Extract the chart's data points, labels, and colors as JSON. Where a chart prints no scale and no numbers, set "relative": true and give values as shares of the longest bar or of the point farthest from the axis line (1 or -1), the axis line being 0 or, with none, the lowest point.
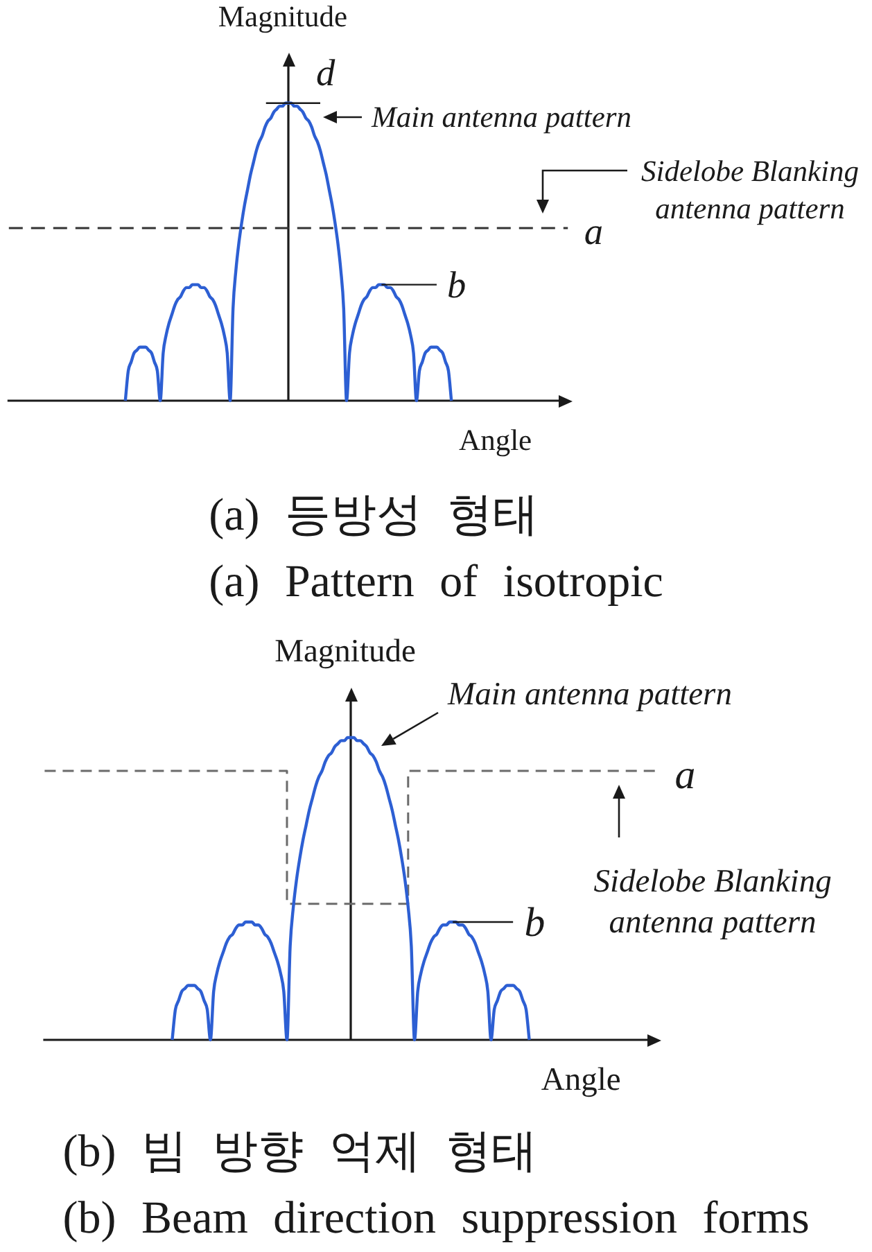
{
  "chart_data": [
    {
      "type": "line",
      "title": "(a) 등방성 형태",
      "subtitle": "(a) Pattern of isotropic",
      "xlabel": "Angle",
      "ylabel": "Magnitude",
      "relative": true,
      "marker": "none",
      "categories": [
        null,
        null,
        null,
        null,
        null,
        null,
        null,
        null,
        null,
        null,
        null,
        null,
        null,
        null,
        null,
        null,
        null,
        null,
        null,
        null,
        null,
        null,
        null,
        null,
        null,
        null,
        null,
        null,
        null,
        null,
        null,
        null,
        null,
        null,
        null,
        null,
        null,
        null,
        null,
        null,
        null,
        null,
        null,
        null,
        null,
        null,
        null,
        null,
        null,
        null,
        null,
        null,
        null,
        null,
        null,
        null,
        null,
        null,
        null,
        null,
        null,
        null,
        null,
        null,
        null,
        null,
        null,
        null,
        null,
        null,
        null,
        null,
        null,
        null,
        null,
        null,
        null,
        null,
        null,
        null,
        null,
        null,
        null,
        null,
        null,
        null,
        null,
        null,
        null,
        null,
        null,
        null,
        null,
        null,
        null,
        null,
        null,
        null,
        null,
        null,
        null,
        null,
        null,
        null,
        null,
        null,
        null,
        null,
        null,
        null,
        null,
        null,
        null,
        null,
        null,
        null,
        null,
        null,
        null,
        null,
        null,
        null,
        null,
        null,
        null,
        null,
        null,
        null,
        null,
        null,
        null,
        null,
        null,
        null,
        null,
        null,
        null,
        null,
        null,
        null,
        null,
        null,
        null,
        null,
        null,
        null,
        null,
        null,
        null,
        null,
        null,
        null,
        null,
        null,
        null,
        null,
        null,
        null,
        null,
        null,
        null,
        null,
        null,
        null,
        null,
        null,
        null,
        null,
        null,
        null,
        null,
        null,
        null,
        null,
        null,
        null,
        null,
        null,
        null,
        null,
        null,
        null,
        null,
        null,
        null,
        null,
        null,
        null,
        null,
        null,
        null,
        null,
        null
      ],
      "series": [
        {
          "name": "Main antenna pattern",
          "color": "#2d5fd3",
          "values": [
            null,
            null,
            null,
            null,
            null,
            null,
            null,
            null,
            null,
            null,
            null,
            null,
            null,
            null,
            null,
            null,
            null,
            null,
            null,
            null,
            null,
            null,
            null,
            null,
            null,
            null,
            null,
            null,
            null,
            null,
            null,
            null,
            null,
            null,
            null,
            null,
            null,
            null,
            null,
            null,
            0,
            0.1,
            0.13,
            0.16,
            0.17,
            0.18,
            0.18,
            0.18,
            0.17,
            0.16,
            0.13,
            0.1,
            0,
            0.16,
            0.22,
            0.26,
            0.29,
            0.32,
            0.34,
            0.35,
            0.37,
            0.38,
            0.38,
            0.39,
            0.39,
            0.39,
            0.38,
            0.38,
            0.37,
            0.35,
            0.34,
            0.32,
            0.29,
            0.26,
            0.22,
            0.16,
            0,
            0.31,
            0.44,
            0.53,
            0.6,
            0.66,
            0.71,
            0.76,
            0.8,
            0.84,
            0.87,
            0.89,
            0.92,
            0.94,
            0.95,
            0.97,
            0.98,
            0.99,
            0.99,
            1,
            1,
            1,
            0.99,
            0.99,
            0.98,
            0.97,
            0.95,
            0.94,
            0.92,
            0.89,
            0.87,
            0.84,
            0.8,
            0.76,
            0.71,
            0.66,
            0.6,
            0.53,
            0.44,
            0.31,
            0,
            0.16,
            0.22,
            0.26,
            0.29,
            0.32,
            0.34,
            0.35,
            0.37,
            0.38,
            0.38,
            0.39,
            0.39,
            0.39,
            0.38,
            0.38,
            0.37,
            0.35,
            0.34,
            0.32,
            0.29,
            0.26,
            0.22,
            0.16,
            0,
            0.1,
            0.13,
            0.16,
            0.17,
            0.18,
            0.18,
            0.18,
            0.17,
            0.16,
            0.13,
            0.1,
            0,
            null,
            null,
            null,
            null,
            null,
            null,
            null,
            null,
            null,
            null,
            null,
            null,
            null,
            null,
            null,
            null,
            null,
            null,
            null,
            null,
            null,
            null,
            null,
            null,
            null,
            null,
            null,
            null,
            null,
            null,
            null,
            null,
            null,
            null,
            null,
            null,
            null,
            null,
            null,
            null
          ]
        },
        {
          "name": "Sidelobe Blanking antenna pattern",
          "color": "#333333",
          "line_style": "dashed",
          "values": [
            0.58,
            0.58,
            0.58,
            0.58,
            0.58,
            0.58,
            0.58,
            0.58,
            0.58,
            0.58,
            0.58,
            0.58,
            0.58,
            0.58,
            0.58,
            0.58,
            0.58,
            0.58,
            0.58,
            0.58,
            0.58,
            0.58,
            0.58,
            0.58,
            0.58,
            0.58,
            0.58,
            0.58,
            0.58,
            0.58,
            0.58,
            0.58,
            0.58,
            0.58,
            0.58,
            0.58,
            0.58,
            0.58,
            0.58,
            0.58,
            0.58,
            0.58,
            0.58,
            0.58,
            0.58,
            0.58,
            0.58,
            0.58,
            0.58,
            0.58,
            0.58,
            0.58,
            0.58,
            0.58,
            0.58,
            0.58,
            0.58,
            0.58,
            0.58,
            0.58,
            0.58,
            0.58,
            0.58,
            0.58,
            0.58,
            0.58,
            0.58,
            0.58,
            0.58,
            0.58,
            0.58,
            0.58,
            0.58,
            0.58,
            0.58,
            0.58,
            0.58,
            0.58,
            0.58,
            0.58,
            0.58,
            0.58,
            0.58,
            0.58,
            0.58,
            0.58,
            0.58,
            0.58,
            0.58,
            0.58,
            0.58,
            0.58,
            0.58,
            0.58,
            0.58,
            0.58,
            0.58,
            0.58,
            0.58,
            0.58,
            0.58,
            0.58,
            0.58,
            0.58,
            0.58,
            0.58,
            0.58,
            0.58,
            0.58,
            0.58,
            0.58,
            0.58,
            0.58,
            0.58,
            0.58,
            0.58,
            0.58,
            0.58,
            0.58,
            0.58,
            0.58,
            0.58,
            0.58,
            0.58,
            0.58,
            0.58,
            0.58,
            0.58,
            0.58,
            0.58,
            0.58,
            0.58,
            0.58,
            0.58,
            0.58,
            0.58,
            0.58,
            0.58,
            0.58,
            0.58,
            0.58,
            0.58,
            0.58,
            0.58,
            0.58,
            0.58,
            0.58,
            0.58,
            0.58,
            0.58,
            0.58,
            0.58,
            0.58,
            0.58,
            0.58,
            0.58,
            0.58,
            0.58,
            0.58,
            0.58,
            0.58,
            0.58,
            0.58,
            0.58,
            0.58,
            0.58,
            0.58,
            0.58,
            0.58,
            0.58,
            0.58,
            0.58,
            0.58,
            0.58,
            0.58,
            0.58,
            0.58,
            0.58,
            0.58,
            0.58,
            0.58,
            0.58,
            0.58,
            0.58,
            0.58,
            0.58,
            0.58,
            0.58,
            0.58,
            0.58,
            0.58,
            0.58,
            0.58
          ]
        }
      ],
      "annotations": [
        "d",
        "a",
        "b"
      ]
    },
    {
      "type": "line",
      "title": "(b) 빔 방향 억제 형태",
      "subtitle": "(b) Beam direction suppression forms",
      "xlabel": "Angle",
      "ylabel": "Magnitude",
      "relative": true,
      "marker": "none",
      "categories": [
        null,
        null,
        null,
        null,
        null,
        null,
        null,
        null,
        null,
        null,
        null,
        null,
        null,
        null,
        null,
        null,
        null,
        null,
        null,
        null,
        null,
        null,
        null,
        null,
        null,
        null,
        null,
        null,
        null,
        null,
        null,
        null,
        null,
        null,
        null,
        null,
        null,
        null,
        null,
        null,
        null,
        null,
        null,
        null,
        null,
        null,
        null,
        null,
        null,
        null,
        null,
        null,
        null,
        null,
        null,
        null,
        null,
        null,
        null,
        null,
        null,
        null,
        null,
        null,
        null,
        null,
        null,
        null,
        null,
        null,
        null,
        null,
        null,
        null,
        null,
        null,
        null,
        null,
        null,
        null,
        null,
        null,
        null,
        null,
        null,
        null,
        null,
        null,
        null,
        null,
        null,
        null,
        null,
        null,
        null,
        null,
        null,
        null,
        null,
        null,
        null,
        null,
        null,
        null,
        null,
        null,
        null,
        null,
        null,
        null,
        null,
        null,
        null,
        null,
        null,
        null,
        null,
        null,
        null,
        null,
        null,
        null,
        null,
        null,
        null,
        null,
        null,
        null,
        null,
        null,
        null,
        null,
        null,
        null,
        null,
        null,
        null,
        null,
        null,
        null,
        null,
        null,
        null,
        null,
        null,
        null,
        null,
        null,
        null,
        null,
        null,
        null,
        null,
        null,
        null,
        null,
        null,
        null,
        null,
        null,
        null,
        null,
        null,
        null,
        null,
        null,
        null,
        null,
        null,
        null,
        null,
        null,
        null,
        null,
        null,
        null,
        null,
        null,
        null,
        null,
        null,
        null,
        null,
        null,
        null,
        null,
        null,
        null,
        null,
        null,
        null,
        null,
        null
      ],
      "series": [
        {
          "name": "Main antenna pattern",
          "color": "#2d5fd3",
          "values": [
            null,
            null,
            null,
            null,
            null,
            null,
            null,
            null,
            null,
            null,
            null,
            null,
            null,
            null,
            null,
            null,
            null,
            null,
            null,
            null,
            null,
            null,
            null,
            null,
            null,
            null,
            null,
            null,
            null,
            null,
            null,
            null,
            null,
            null,
            null,
            null,
            null,
            null,
            null,
            null,
            0,
            0.1,
            0.13,
            0.16,
            0.17,
            0.18,
            0.18,
            0.18,
            0.17,
            0.16,
            0.13,
            0.1,
            0,
            0.16,
            0.22,
            0.26,
            0.29,
            0.32,
            0.34,
            0.35,
            0.37,
            0.38,
            0.38,
            0.39,
            0.39,
            0.39,
            0.38,
            0.38,
            0.37,
            0.35,
            0.34,
            0.32,
            0.29,
            0.26,
            0.22,
            0.16,
            0,
            0.31,
            0.44,
            0.53,
            0.6,
            0.66,
            0.71,
            0.76,
            0.8,
            0.84,
            0.87,
            0.89,
            0.92,
            0.94,
            0.95,
            0.97,
            0.98,
            0.99,
            0.99,
            1,
            1,
            1,
            0.99,
            0.99,
            0.98,
            0.97,
            0.95,
            0.94,
            0.92,
            0.89,
            0.87,
            0.84,
            0.8,
            0.76,
            0.71,
            0.66,
            0.6,
            0.53,
            0.44,
            0.31,
            0,
            0.16,
            0.22,
            0.26,
            0.29,
            0.32,
            0.34,
            0.35,
            0.37,
            0.38,
            0.38,
            0.39,
            0.39,
            0.39,
            0.38,
            0.38,
            0.37,
            0.35,
            0.34,
            0.32,
            0.29,
            0.26,
            0.22,
            0.16,
            0,
            0.1,
            0.13,
            0.16,
            0.17,
            0.18,
            0.18,
            0.18,
            0.17,
            0.16,
            0.13,
            0.1,
            0,
            null,
            null,
            null,
            null,
            null,
            null,
            null,
            null,
            null,
            null,
            null,
            null,
            null,
            null,
            null,
            null,
            null,
            null,
            null,
            null,
            null,
            null,
            null,
            null,
            null,
            null,
            null,
            null,
            null,
            null,
            null,
            null,
            null,
            null,
            null,
            null,
            null,
            null,
            null,
            null
          ]
        },
        {
          "name": "Sidelobe Blanking antenna pattern",
          "color": "#6b6b6b",
          "type": "step",
          "line_style": "dashed",
          "values": [
            0.89,
            0.89,
            0.89,
            0.89,
            0.89,
            0.89,
            0.89,
            0.89,
            0.89,
            0.89,
            0.89,
            0.89,
            0.89,
            0.89,
            0.89,
            0.89,
            0.89,
            0.89,
            0.89,
            0.89,
            0.89,
            0.89,
            0.89,
            0.89,
            0.89,
            0.89,
            0.89,
            0.89,
            0.89,
            0.89,
            0.89,
            0.89,
            0.89,
            0.89,
            0.89,
            0.89,
            0.89,
            0.89,
            0.89,
            0.89,
            0.89,
            0.89,
            0.89,
            0.89,
            0.89,
            0.89,
            0.89,
            0.89,
            0.89,
            0.89,
            0.89,
            0.89,
            0.89,
            0.89,
            0.89,
            0.89,
            0.89,
            0.89,
            0.89,
            0.89,
            0.89,
            0.89,
            0.89,
            0.89,
            0.89,
            0.89,
            0.89,
            0.89,
            0.89,
            0.89,
            0.89,
            0.89,
            0.89,
            0.89,
            0.89,
            0.89,
            0.45,
            0.45,
            0.45,
            0.45,
            0.45,
            0.45,
            0.45,
            0.45,
            0.45,
            0.45,
            0.45,
            0.45,
            0.45,
            0.45,
            0.45,
            0.45,
            0.45,
            0.45,
            0.45,
            0.45,
            0.45,
            0.45,
            0.45,
            0.45,
            0.45,
            0.45,
            0.45,
            0.45,
            0.45,
            0.45,
            0.45,
            0.45,
            0.45,
            0.45,
            0.45,
            0.45,
            0.45,
            0.45,
            0.89,
            0.89,
            0.89,
            0.89,
            0.89,
            0.89,
            0.89,
            0.89,
            0.89,
            0.89,
            0.89,
            0.89,
            0.89,
            0.89,
            0.89,
            0.89,
            0.89,
            0.89,
            0.89,
            0.89,
            0.89,
            0.89,
            0.89,
            0.89,
            0.89,
            0.89,
            0.89,
            0.89,
            0.89,
            0.89,
            0.89,
            0.89,
            0.89,
            0.89,
            0.89,
            0.89,
            0.89,
            0.89,
            0.89,
            0.89,
            0.89,
            0.89,
            0.89,
            0.89,
            0.89,
            0.89,
            0.89,
            0.89,
            0.89,
            0.89,
            0.89,
            0.89,
            0.89,
            0.89,
            0.89,
            0.89,
            0.89,
            0.89,
            0.89,
            0.89,
            0.89,
            0.89,
            0.89,
            0.89,
            0.89,
            0.89,
            0.89,
            0.89,
            0.89,
            0.89,
            0.89,
            0.89,
            0.89,
            0.89,
            0.89,
            0.89,
            0.89,
            0.89,
            0.89
          ]
        }
      ],
      "annotations": [
        "a",
        "b"
      ]
    }
  ]
}
